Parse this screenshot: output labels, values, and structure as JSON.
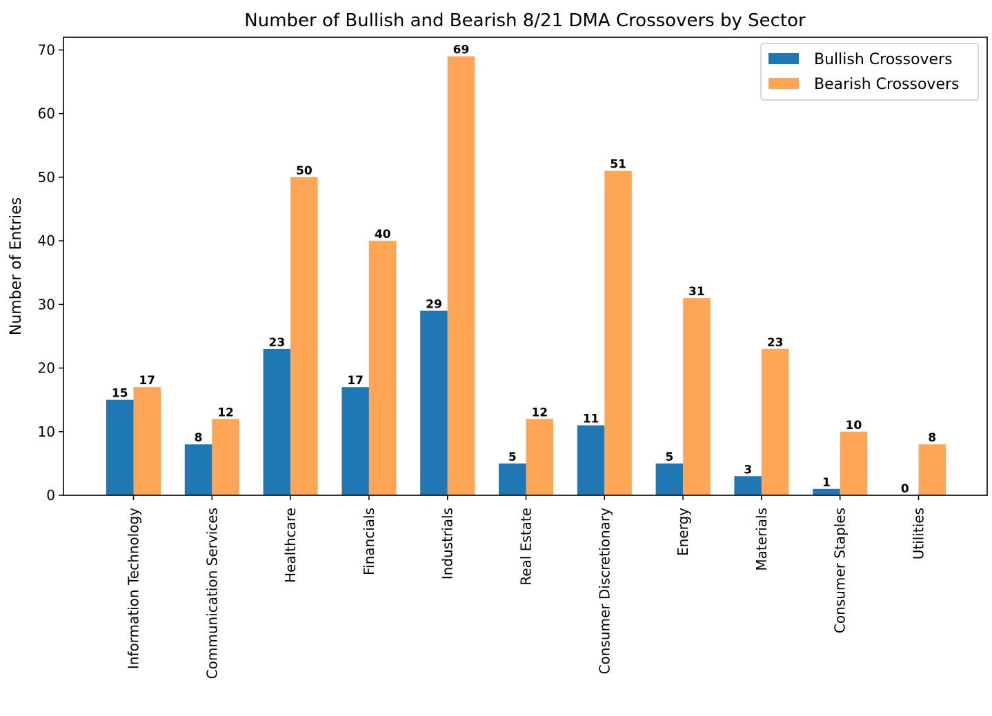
{
  "chart_data": {
    "type": "bar",
    "title": "Number of Bullish and Bearish 8/21 DMA Crossovers by Sector",
    "xlabel": "",
    "ylabel": "Number of Entries",
    "ylim": [
      0,
      72
    ],
    "yticks": [
      0,
      10,
      20,
      30,
      40,
      50,
      60,
      70
    ],
    "categories": [
      "Information Technology",
      "Communication Services",
      "Healthcare",
      "Financials",
      "Industrials",
      "Real Estate",
      "Consumer Discretionary",
      "Energy",
      "Materials",
      "Consumer Staples",
      "Utilities"
    ],
    "series": [
      {
        "name": "Bullish Crossovers",
        "color": "#1f77b4",
        "values": [
          15,
          8,
          23,
          17,
          29,
          5,
          11,
          5,
          3,
          1,
          0
        ]
      },
      {
        "name": "Bearish Crossovers",
        "color": "#ffa556",
        "values": [
          17,
          12,
          50,
          40,
          69,
          12,
          51,
          31,
          23,
          10,
          8
        ]
      }
    ],
    "legend_position": "top-right",
    "grid": false
  }
}
